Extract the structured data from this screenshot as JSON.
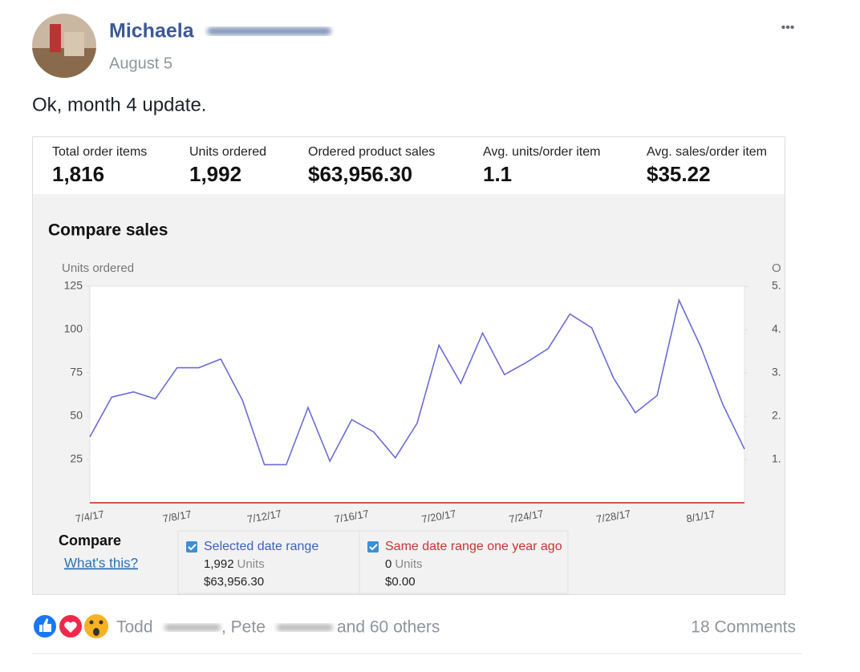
{
  "post": {
    "author": "Michaela",
    "date": "August 5",
    "text": "Ok, month 4 update.",
    "menu": "•••"
  },
  "metrics": [
    {
      "label": "Total order items",
      "value": "1,816"
    },
    {
      "label": "Units ordered",
      "value": "1,992"
    },
    {
      "label": "Ordered product sales",
      "value": "$63,956.30"
    },
    {
      "label": "Avg. units/order item",
      "value": "1.1"
    },
    {
      "label": "Avg. sales/order item",
      "value": "$35.22"
    }
  ],
  "chart_data": {
    "type": "line",
    "title": "Compare sales",
    "y_label": "Units ordered",
    "y2_label": "O",
    "categories": [
      "7/4/17",
      null,
      null,
      null,
      "7/8/17",
      null,
      null,
      null,
      "7/12/17",
      null,
      null,
      null,
      "7/16/17",
      null,
      null,
      null,
      "7/20/17",
      null,
      null,
      null,
      "7/24/17",
      null,
      null,
      null,
      "7/28/17",
      null,
      null,
      null,
      "8/1/17",
      null,
      null
    ],
    "series": [
      {
        "name": "Selected date range",
        "color": "#6b6bd6",
        "values": [
          38,
          61,
          64,
          60,
          78,
          78,
          83,
          59,
          22,
          22,
          55,
          24,
          48,
          41,
          26,
          46,
          91,
          69,
          98,
          74,
          81,
          89,
          109,
          101,
          72,
          52,
          62,
          117,
          90,
          57,
          31
        ]
      },
      {
        "name": "Same date range one year ago",
        "color": "#d9534f",
        "values": [
          0,
          0,
          0,
          0,
          0,
          0,
          0,
          0,
          0,
          0,
          0,
          0,
          0,
          0,
          0,
          0,
          0,
          0,
          0,
          0,
          0,
          0,
          0,
          0,
          0,
          0,
          0,
          0,
          0,
          0,
          0
        ]
      }
    ],
    "ylim": [
      0,
      125
    ],
    "yticks": [
      25,
      50,
      75,
      100,
      125
    ],
    "y2lim": [
      0,
      5
    ],
    "y2ticks": [
      {
        "value": 1,
        "label": "1."
      },
      {
        "value": 2,
        "label": "2."
      },
      {
        "value": 3,
        "label": "3."
      },
      {
        "value": 4,
        "label": "4."
      },
      {
        "value": 5,
        "label": "5."
      }
    ]
  },
  "compare": {
    "title": "Compare",
    "link": "What's this?",
    "items": [
      {
        "label": "Selected date range",
        "units": "1,992",
        "unit_label": "Units",
        "sales": "$63,956.30"
      },
      {
        "label": "Same date range one year ago",
        "units": "0",
        "unit_label": "Units",
        "sales": "$0.00"
      }
    ]
  },
  "footer": {
    "name1": "Todd",
    "name2": ", Pete",
    "others": "and 60 others",
    "comments": "18 Comments"
  }
}
